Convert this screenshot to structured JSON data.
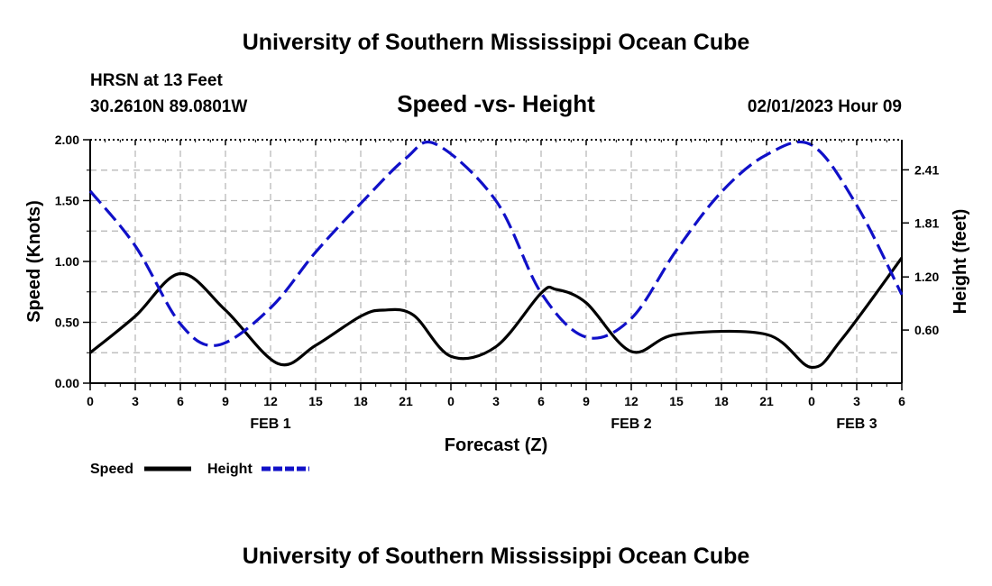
{
  "header": {
    "title": "University of Southern Mississippi Ocean Cube",
    "station": "HRSN at 13 Feet",
    "coords": "30.2610N  89.0801W",
    "chart_title": "Speed -vs- Height",
    "timestamp": "02/01/2023 Hour 09"
  },
  "footer": {
    "title": "University of Southern Mississippi Ocean Cube"
  },
  "colors": {
    "speed": "#000000",
    "height": "#1010c8",
    "grid": "#b4b4b4"
  },
  "chart_data": {
    "type": "line",
    "title": "Speed -vs- Height",
    "xlabel": "Forecast (Z)",
    "ylabel": "Speed (Knots)",
    "y2label": "Height (feet)",
    "x_unit": "hours from Feb 1 00Z",
    "xlim": [
      0,
      54
    ],
    "ylim": [
      0,
      2.0
    ],
    "y2lim": [
      0.0,
      2.75
    ],
    "x_ticks": [
      0,
      3,
      6,
      9,
      12,
      15,
      18,
      21,
      24,
      27,
      30,
      33,
      36,
      39,
      42,
      45,
      48,
      51,
      54
    ],
    "x_tick_labels": [
      "0",
      "3",
      "6",
      "9",
      "12",
      "15",
      "18",
      "21",
      "0",
      "3",
      "6",
      "9",
      "12",
      "15",
      "18",
      "21",
      "0",
      "3",
      "6"
    ],
    "y_ticks": [
      0,
      0.5,
      1.0,
      1.5,
      2.0
    ],
    "y_tick_labels": [
      "0.00",
      "0.50",
      "1.00",
      "1.50",
      "2.00"
    ],
    "y2_ticks": [
      0.6,
      1.2,
      1.81,
      2.41
    ],
    "y2_tick_labels": [
      "0.60",
      "1.20",
      "1.81",
      "2.41"
    ],
    "date_labels": [
      {
        "x": 12,
        "label": "FEB 1"
      },
      {
        "x": 36,
        "label": "FEB 2"
      },
      {
        "x": 51,
        "label": "FEB 3"
      }
    ],
    "legend": {
      "placement": "bottom-left",
      "speed_label": "Speed",
      "height_label": "Height"
    },
    "series": [
      {
        "name": "Speed",
        "axis": "left",
        "style": "solid",
        "x": [
          0,
          3,
          6,
          9,
          12.5,
          15,
          18,
          19.5,
          21.5,
          24,
          27,
          30,
          31,
          33,
          36,
          39,
          45,
          48,
          50,
          54
        ],
        "values": [
          0.25,
          0.55,
          0.9,
          0.6,
          0.16,
          0.31,
          0.55,
          0.6,
          0.56,
          0.22,
          0.3,
          0.74,
          0.77,
          0.66,
          0.26,
          0.4,
          0.4,
          0.13,
          0.36,
          1.03
        ]
      },
      {
        "name": "Height",
        "axis": "right",
        "style": "dashed",
        "x": [
          0,
          3,
          6,
          8.5,
          12,
          15,
          18,
          21,
          23,
          27,
          30,
          33,
          36,
          39,
          42,
          45,
          48,
          51,
          54
        ],
        "values": [
          2.17,
          1.55,
          0.67,
          0.43,
          0.85,
          1.48,
          2.03,
          2.54,
          2.7,
          2.06,
          1.02,
          0.52,
          0.73,
          1.5,
          2.16,
          2.58,
          2.69,
          2.01,
          1.0
        ]
      }
    ]
  }
}
